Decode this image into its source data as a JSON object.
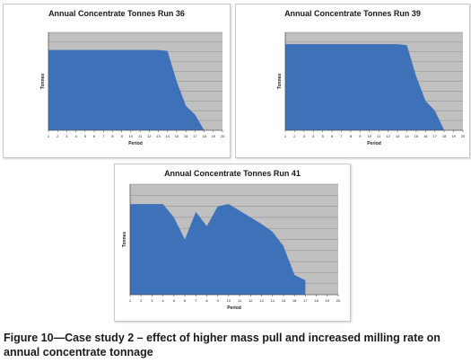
{
  "caption": "Figure 10—Case study 2 – effect of higher mass pull and increased milling rate on annual concentrate tonnage",
  "colors": {
    "area": "#3d72b8",
    "plot_bg": "#c0c0c0",
    "gridline": "#8a8a8a",
    "text": "#1a1a1a"
  },
  "chart_data": [
    {
      "type": "area",
      "title": "Annual Concentrate Tonnes Run 36",
      "xlabel": "Period",
      "ylabel": "Tonnes",
      "x": [
        1,
        2,
        3,
        4,
        5,
        6,
        7,
        8,
        9,
        10,
        11,
        12,
        13,
        14,
        15,
        16,
        17,
        18,
        19,
        20
      ],
      "values": [
        0.82,
        0.82,
        0.82,
        0.82,
        0.82,
        0.82,
        0.82,
        0.82,
        0.82,
        0.82,
        0.82,
        0.82,
        0.82,
        0.81,
        0.5,
        0.25,
        0.16,
        0,
        null,
        null
      ],
      "xlim": [
        1,
        20
      ],
      "ylim": [
        0,
        1
      ],
      "grid": true,
      "legend": "none"
    },
    {
      "type": "area",
      "title": "Annual Concentrate Tonnes Run 39",
      "xlabel": "Period",
      "ylabel": "Tonnes",
      "x": [
        1,
        2,
        3,
        4,
        5,
        6,
        7,
        8,
        9,
        10,
        11,
        12,
        13,
        14,
        15,
        16,
        17,
        18,
        19,
        20
      ],
      "values": [
        0.88,
        0.88,
        0.88,
        0.88,
        0.88,
        0.88,
        0.88,
        0.88,
        0.88,
        0.88,
        0.88,
        0.88,
        0.88,
        0.87,
        0.55,
        0.3,
        0.2,
        0,
        null,
        null
      ],
      "xlim": [
        1,
        20
      ],
      "ylim": [
        0,
        1
      ],
      "grid": true,
      "legend": "none"
    },
    {
      "type": "area",
      "title": "Annual Concentrate Tonnes Run 41",
      "xlabel": "Period",
      "ylabel": "Tonnes",
      "x": [
        1,
        2,
        3,
        4,
        5,
        6,
        7,
        8,
        9,
        10,
        11,
        12,
        13,
        14,
        15,
        16,
        17,
        18,
        19,
        20
      ],
      "values": [
        0.82,
        0.82,
        0.82,
        0.82,
        0.7,
        0.5,
        0.75,
        0.62,
        0.8,
        0.82,
        0.76,
        0.7,
        0.64,
        0.57,
        0.44,
        0.18,
        0.13,
        null,
        null,
        null
      ],
      "xlim": [
        1,
        20
      ],
      "ylim": [
        0,
        1
      ],
      "grid": true,
      "legend": "none"
    }
  ]
}
